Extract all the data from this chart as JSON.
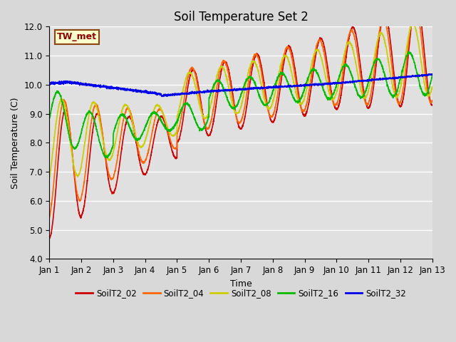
{
  "title": "Soil Temperature Set 2",
  "xlabel": "Time",
  "ylabel": "Soil Temperature (C)",
  "ylim": [
    4.0,
    12.0
  ],
  "xlim": [
    0,
    12
  ],
  "xtick_labels": [
    "Jan 1",
    "Jan 2",
    "Jan 3",
    "Jan 4",
    "Jan 5",
    "Jan 6",
    "Jan 7",
    "Jan 8",
    "Jan 9",
    "Jan 10",
    "Jan 11",
    "Jan 12",
    "Jan 13"
  ],
  "ytick_labels": [
    "4.0",
    "5.0",
    "6.0",
    "7.0",
    "8.0",
    "9.0",
    "10.0",
    "11.0",
    "12.0"
  ],
  "annotation": "TW_met",
  "bg_color": "#e0e0e0",
  "grid_color": "white",
  "series": [
    {
      "label": "SoilT2_02",
      "color": "#cc0000",
      "lw": 1.2
    },
    {
      "label": "SoilT2_04",
      "color": "#ff6600",
      "lw": 1.2
    },
    {
      "label": "SoilT2_08",
      "color": "#cccc00",
      "lw": 1.2
    },
    {
      "label": "SoilT2_16",
      "color": "#00bb00",
      "lw": 1.2
    },
    {
      "label": "SoilT2_32",
      "color": "#0000ee",
      "lw": 1.2
    }
  ]
}
